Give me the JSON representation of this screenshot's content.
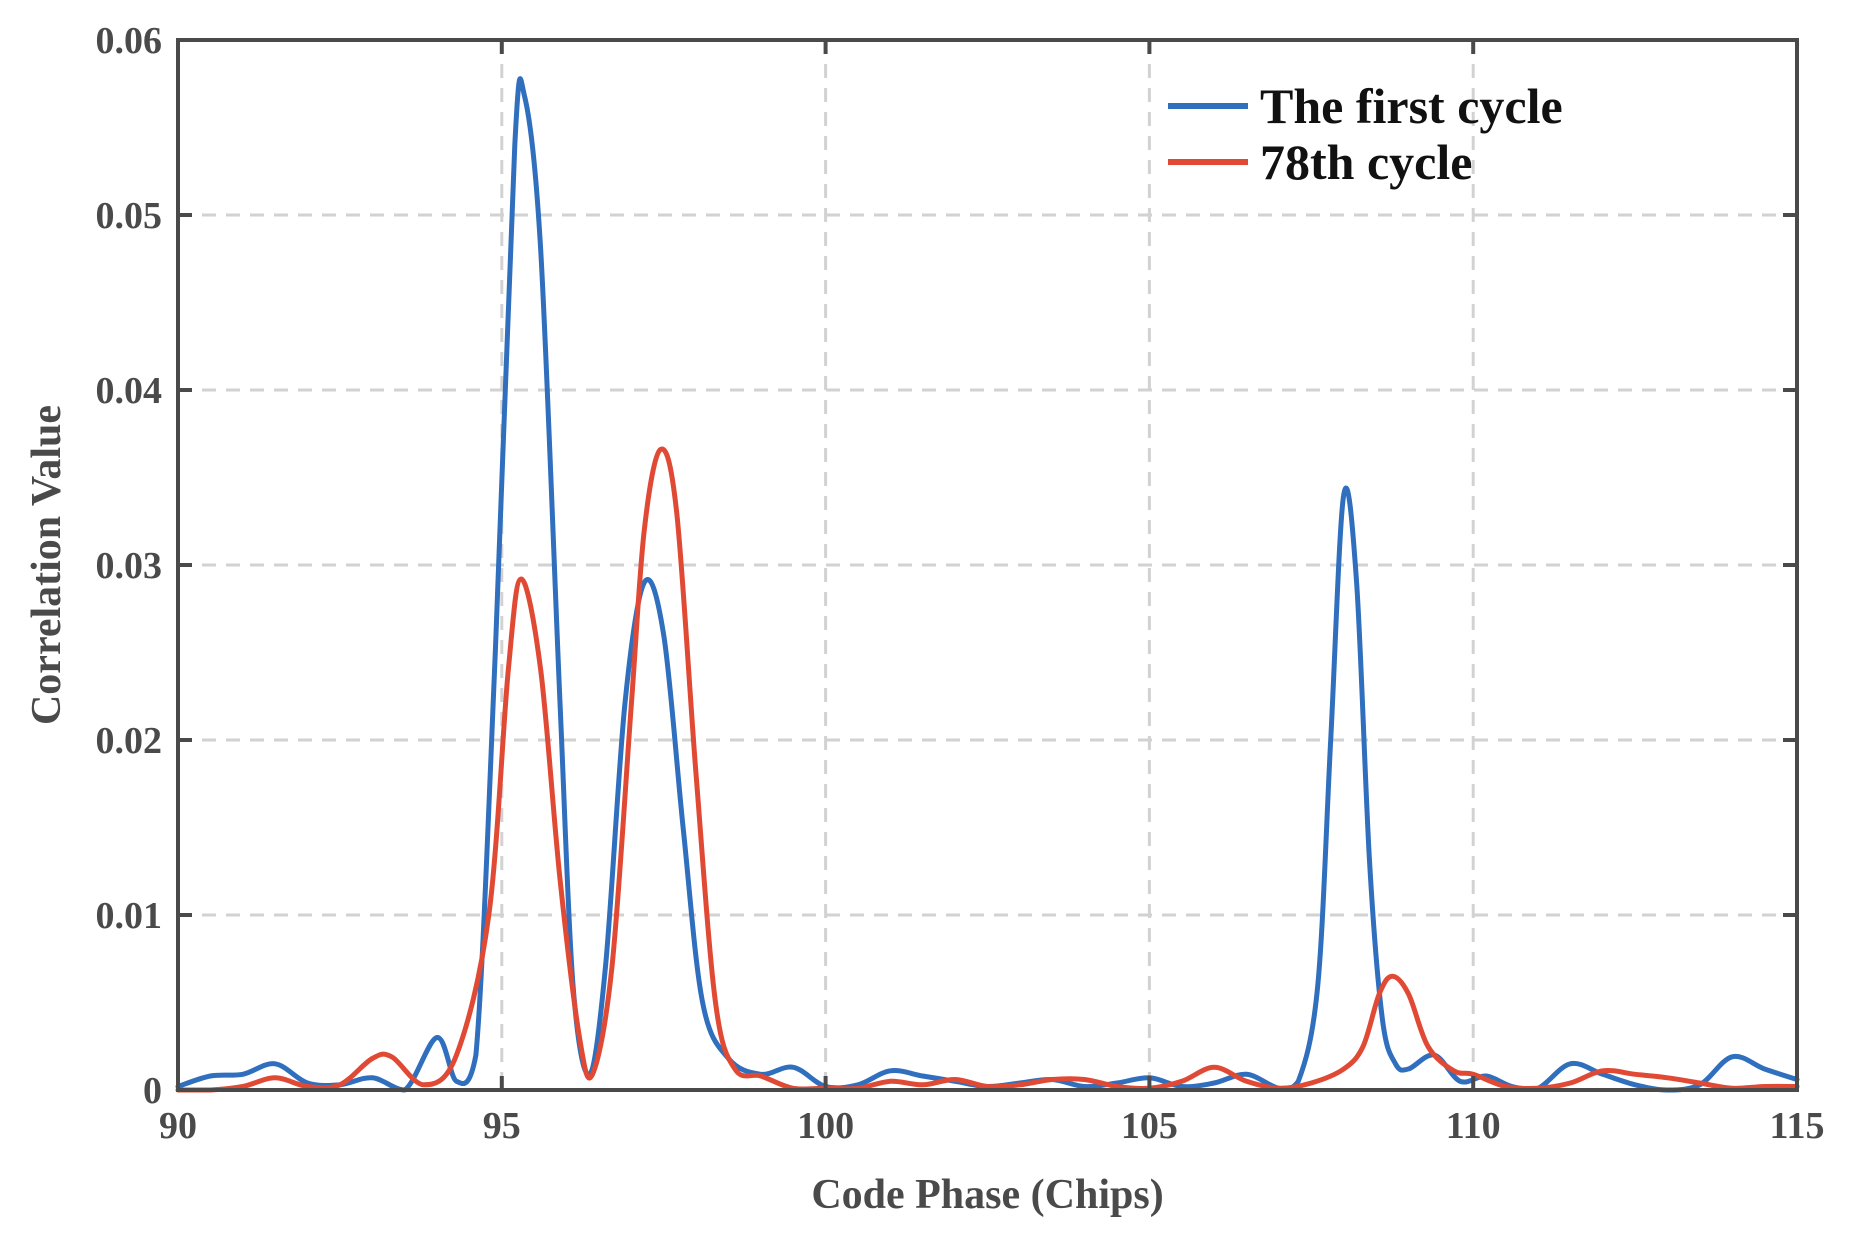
{
  "chart_data": {
    "type": "line",
    "title": "",
    "xlabel": "Code Phase (Chips)",
    "ylabel": "Correlation Value",
    "xlim": [
      90,
      115
    ],
    "ylim": [
      0,
      0.06
    ],
    "grid": true,
    "legend_position": "top-right",
    "xticks": [
      90,
      95,
      100,
      105,
      110,
      115
    ],
    "xtick_labels": [
      "90",
      "95",
      "100",
      "105",
      "110",
      "115"
    ],
    "yticks": [
      0,
      0.01,
      0.02,
      0.03,
      0.04,
      0.05,
      0.06
    ],
    "ytick_labels": [
      "0",
      "0.01",
      "0.02",
      "0.03",
      "0.04",
      "0.05",
      "0.06"
    ],
    "series": [
      {
        "name": "The first cycle",
        "color": "#2f6fbd",
        "x": [
          90,
          90.5,
          91,
          91.5,
          92,
          92.5,
          93,
          93.5,
          94,
          94.3,
          94.6,
          94.9,
          95.2,
          95.35,
          95.6,
          95.9,
          96.1,
          96.35,
          96.6,
          96.9,
          97.2,
          97.5,
          97.8,
          98.1,
          98.5,
          99,
          99.5,
          100,
          100.5,
          101,
          101.5,
          102,
          102.5,
          103,
          103.5,
          104,
          104.5,
          105,
          105.5,
          106,
          106.5,
          107,
          107.3,
          107.6,
          107.8,
          108,
          108.2,
          108.4,
          108.6,
          108.8,
          109,
          109.4,
          109.8,
          110.2,
          110.6,
          111,
          111.5,
          112,
          112.5,
          113,
          113.5,
          114,
          114.5,
          115
        ],
        "values": [
          0.0002,
          0.0008,
          0.0009,
          0.0015,
          0.0004,
          0.0003,
          0.0007,
          0.0,
          0.003,
          0.0005,
          0.002,
          0.025,
          0.054,
          0.0568,
          0.048,
          0.022,
          0.006,
          0.0009,
          0.007,
          0.022,
          0.029,
          0.026,
          0.015,
          0.005,
          0.0018,
          0.0009,
          0.0013,
          0.0002,
          0.0003,
          0.0011,
          0.0008,
          0.0005,
          0.0002,
          0.0004,
          0.0006,
          0.0002,
          0.0004,
          0.0007,
          0.0002,
          0.0004,
          0.0009,
          0.0001,
          0.0005,
          0.006,
          0.02,
          0.034,
          0.029,
          0.013,
          0.004,
          0.0015,
          0.0012,
          0.002,
          0.0005,
          0.0008,
          0.0002,
          0.0001,
          0.0015,
          0.0009,
          0.0003,
          0.0,
          0.0003,
          0.0019,
          0.0012,
          0.0006
        ]
      },
      {
        "name": "78th cycle",
        "color": "#e04a35",
        "x": [
          90,
          90.5,
          91,
          91.5,
          92,
          92.5,
          93,
          93.3,
          93.8,
          94.3,
          94.8,
          95.1,
          95.3,
          95.6,
          95.9,
          96.2,
          96.4,
          96.7,
          97,
          97.2,
          97.45,
          97.7,
          98,
          98.3,
          98.6,
          99,
          99.5,
          100,
          100.5,
          101,
          101.5,
          102,
          102.5,
          103,
          103.5,
          104,
          104.5,
          105,
          105.5,
          106,
          106.5,
          107,
          107.5,
          108,
          108.3,
          108.55,
          108.75,
          109,
          109.3,
          109.7,
          110,
          110.5,
          111,
          111.5,
          112,
          112.5,
          113,
          113.5,
          114,
          114.5,
          115
        ],
        "values": [
          0.0,
          0.0,
          0.0002,
          0.0007,
          0.0002,
          0.0003,
          0.0018,
          0.0019,
          0.0003,
          0.002,
          0.01,
          0.024,
          0.0292,
          0.024,
          0.012,
          0.003,
          0.0009,
          0.007,
          0.022,
          0.032,
          0.0366,
          0.033,
          0.018,
          0.005,
          0.0012,
          0.0008,
          0.0001,
          0.0001,
          0.0001,
          0.0005,
          0.0003,
          0.0006,
          0.0002,
          0.0003,
          0.0006,
          0.0006,
          0.0002,
          0.0001,
          0.0005,
          0.0013,
          0.0005,
          0.0001,
          0.0004,
          0.0012,
          0.0025,
          0.0055,
          0.0065,
          0.0055,
          0.0025,
          0.0011,
          0.0009,
          0.0002,
          0.0001,
          0.0004,
          0.0011,
          0.0009,
          0.0007,
          0.0004,
          0.0001,
          0.0002,
          0.0002
        ]
      }
    ]
  }
}
